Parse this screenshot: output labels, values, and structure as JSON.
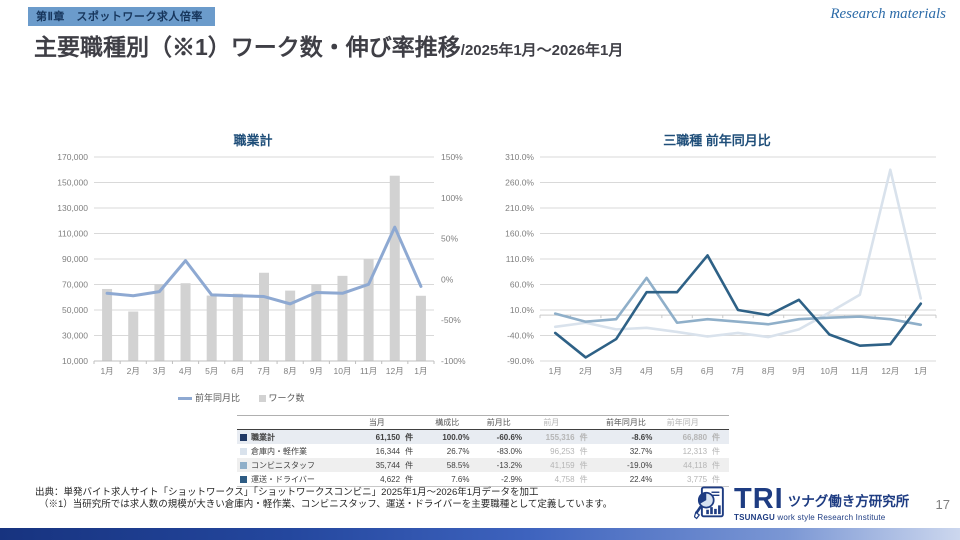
{
  "page": {
    "chapter_badge": "第Ⅱ章　スポットワーク求人倍率",
    "watermark": "Research materials",
    "title_main": "主要職種別（※1）ワーク数・伸び率推移",
    "title_sub": "/2025年1月～2026年1月",
    "page_number": "17"
  },
  "colors": {
    "brand_navy": "#1e3c82",
    "chart_title_navy": "#1f4e79",
    "badge_blue": "#6b9bcb",
    "bar_gray": "#d2d2d2",
    "total_line_blue": "#8ea9d2",
    "warehouse_pale": "#d9e2ec",
    "conbini_medium": "#8fafc9",
    "driver_dark": "#2e6186"
  },
  "chart_data": [
    {
      "type": "bar",
      "title": "職業計",
      "categories": [
        "1月",
        "2月",
        "3月",
        "4月",
        "5月",
        "6月",
        "7月",
        "8月",
        "9月",
        "10月",
        "11月",
        "12月",
        "1月"
      ],
      "bar_series": {
        "name": "ワーク数",
        "color": "#d2d2d2",
        "axis": "left",
        "values": [
          66500,
          48800,
          70300,
          71000,
          61300,
          62800,
          79200,
          65200,
          70200,
          76800,
          90000,
          155316,
          61150
        ]
      },
      "line_series": {
        "name": "前年同月比",
        "color": "#8ea9d2",
        "axis": "right",
        "values": [
          -17,
          -20,
          -15,
          23,
          -19,
          -20,
          -21,
          -30,
          -16,
          -17,
          -6,
          64,
          -8.6
        ]
      },
      "left_axis": {
        "min": 10000,
        "max": 170000,
        "step": 20000,
        "ticks": [
          "170,000",
          "150,000",
          "130,000",
          "110,000",
          "90,000",
          "70,000",
          "50,000",
          "30,000",
          "10,000"
        ]
      },
      "right_axis": {
        "min": -100,
        "max": 150,
        "step": 50,
        "ticks": [
          "150%",
          "100%",
          "50%",
          "0%",
          "-50%",
          "-100%"
        ]
      },
      "grid": true,
      "legend_position": "bottom"
    },
    {
      "type": "line",
      "title": "三職種 前年同月比",
      "categories": [
        "1月",
        "2月",
        "3月",
        "4月",
        "5月",
        "6月",
        "7月",
        "8月",
        "9月",
        "10月",
        "11月",
        "12月",
        "1月"
      ],
      "series": [
        {
          "name": "倉庫内・軽作業",
          "color": "#d9e2ec",
          "values": [
            -23,
            -15,
            -28,
            -25,
            -33,
            -42,
            -35,
            -43,
            -28,
            5,
            40,
            285,
            32.7
          ]
        },
        {
          "name": "コンビニスタッフ",
          "color": "#8fafc9",
          "values": [
            3,
            -13,
            -8,
            73,
            -15,
            -8,
            -13,
            -18,
            -8,
            -5,
            -3,
            -8,
            -19
          ]
        },
        {
          "name": "運送・ドライバー",
          "color": "#2e6186",
          "values": [
            -35,
            -83,
            -47,
            45,
            45,
            117,
            10,
            0,
            30,
            -38,
            -60,
            -57,
            22.4
          ]
        }
      ],
      "y_axis": {
        "min": -90,
        "max": 310,
        "step": 50,
        "ticks": [
          "310.0%",
          "260.0%",
          "210.0%",
          "160.0%",
          "110.0%",
          "60.0%",
          "10.0%",
          "-40.0%",
          "-90.0%"
        ]
      },
      "grid": true,
      "legend_position": "none"
    }
  ],
  "table": {
    "headers": {
      "cur": "当月",
      "comp": "構成比",
      "mom": "前月比",
      "prev": "前月",
      "yoy": "前年同月比",
      "prev_year": "前年同月"
    },
    "unit": "件",
    "rows": [
      {
        "label": "職業計",
        "swatch": "#1f3864",
        "cur": "61,150",
        "comp": "100.0%",
        "mom": "-60.6%",
        "prev": "155,316",
        "yoy": "-8.6%",
        "prev_year": "66,880",
        "emphasis": true
      },
      {
        "label": "倉庫内・軽作業",
        "swatch": "#d9e2ec",
        "cur": "16,344",
        "comp": "26.7%",
        "mom": "-83.0%",
        "prev": "96,253",
        "yoy": "32.7%",
        "prev_year": "12,313",
        "emphasis": false
      },
      {
        "label": "コンビニスタッフ",
        "swatch": "#8fafc9",
        "cur": "35,744",
        "comp": "58.5%",
        "mom": "-13.2%",
        "prev": "41,159",
        "yoy": "-19.0%",
        "prev_year": "44,118",
        "emphasis": false
      },
      {
        "label": "運送・ドライバー",
        "swatch": "#2e5c84",
        "cur": "4,622",
        "comp": "7.6%",
        "mom": "-2.9%",
        "prev": "4,758",
        "yoy": "22.4%",
        "prev_year": "3,775",
        "emphasis": false
      }
    ]
  },
  "footer": {
    "source_line1": "出典：単発バイト求人サイト「ショットワークス」「ショットワークスコンビニ」2025年1月～2026年1月データを加工",
    "source_line2": "（※1）当研究所では求人数の規模が大きい倉庫内・軽作業、コンビニスタッフ、運送・ドライバーを主要職種として定義しています。"
  },
  "logo": {
    "tri": "TRI",
    "name_jp": "ツナグ働き方研究所",
    "name_en_bold": "TSUNAGU",
    "name_en_rest": " work style Research Institute"
  }
}
